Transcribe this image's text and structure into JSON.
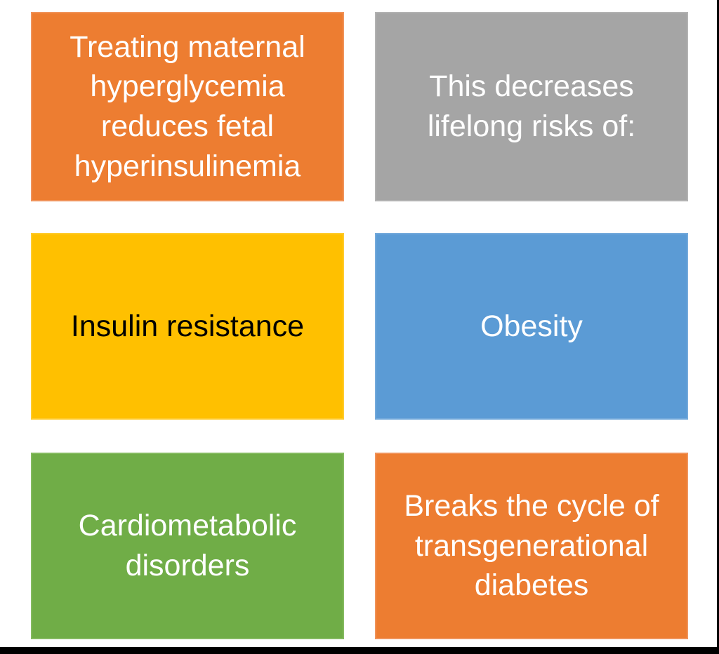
{
  "slide": {
    "background": "#ffffff",
    "edge_bar_color": "#000000"
  },
  "boxes": [
    {
      "id": "treating-maternal-hyperglycemia",
      "text": "Treating maternal\nhyperglycemia\nreduces fetal\nhyperinsulinemia",
      "fill": "#ED7D31",
      "border": "#F0935A",
      "text_color": "#FFFFFF"
    },
    {
      "id": "decreases-lifelong-risks",
      "text": "This decreases\nlifelong risks of:",
      "fill": "#A5A5A5",
      "border": "#B2B2B2",
      "text_color": "#FFFFFF"
    },
    {
      "id": "insulin-resistance",
      "text": "Insulin resistance",
      "fill": "#FFC000",
      "border": "#FFCB2E",
      "text_color": "#000000"
    },
    {
      "id": "obesity",
      "text": "Obesity",
      "fill": "#5B9BD5",
      "border": "#74AADB",
      "text_color": "#FFFFFF"
    },
    {
      "id": "cardiometabolic-disorders",
      "text": "Cardiometabolic\ndisorders",
      "fill": "#70AD47",
      "border": "#84BA5F",
      "text_color": "#FFFFFF"
    },
    {
      "id": "breaks-transgenerational-diabetes",
      "text": "Breaks the cycle of\ntransgenerational\ndiabetes",
      "fill": "#ED7D31",
      "border": "#F0935A",
      "text_color": "#FFFFFF"
    }
  ]
}
